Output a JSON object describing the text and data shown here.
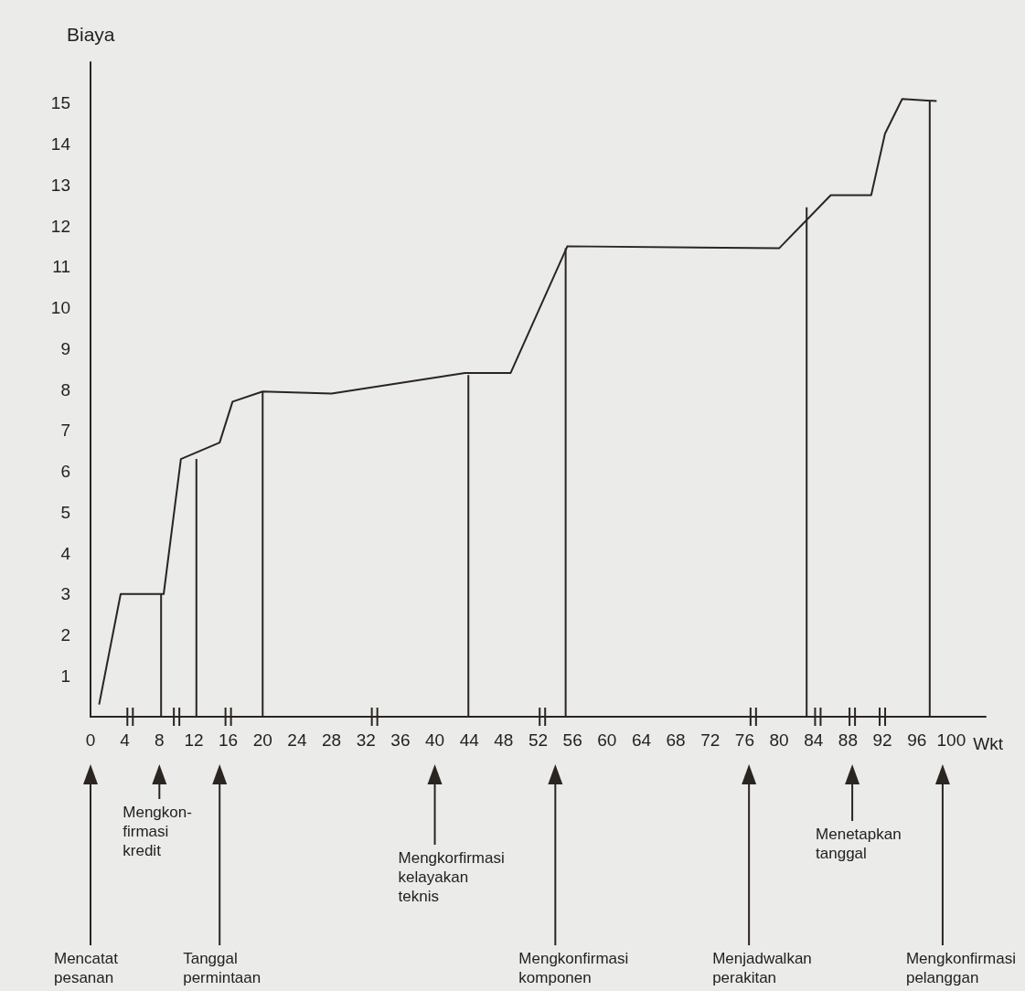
{
  "chart_data": {
    "type": "line",
    "xlabel": "Wkt",
    "ylabel": "Biaya",
    "xlim": [
      0,
      104
    ],
    "xticks": [
      0,
      4,
      8,
      12,
      16,
      20,
      24,
      28,
      32,
      36,
      40,
      44,
      48,
      52,
      56,
      60,
      64,
      68,
      72,
      76,
      80,
      84,
      88,
      92,
      96,
      100
    ],
    "ylim": [
      0,
      16
    ],
    "yticks": [
      1,
      2,
      3,
      4,
      5,
      6,
      7,
      8,
      9,
      10,
      11,
      12,
      13,
      14,
      15
    ],
    "grid": false,
    "marker": "none",
    "line_style": "solid",
    "series": [
      {
        "color": "#2b2522",
        "x": [
          1,
          3.5,
          8.5,
          10.5,
          15,
          16.5,
          20,
          28,
          43.5,
          48.8,
          55.4,
          80,
          86,
          90.7,
          92.3,
          94.3,
          98.3
        ],
        "values": [
          0.3,
          3,
          3,
          6.3,
          6.7,
          7.7,
          7.95,
          7.9,
          8.4,
          8.4,
          11.5,
          11.45,
          12.75,
          12.75,
          14.25,
          15.1,
          15.05
        ]
      },
      {
        "color": "#2b2522",
        "x": [
          8.2,
          8.2
        ],
        "values": [
          0,
          3
        ]
      },
      {
        "color": "#2b2522",
        "x": [
          12.3,
          12.3
        ],
        "values": [
          0,
          6.3
        ]
      },
      {
        "color": "#2b2522",
        "x": [
          20,
          20
        ],
        "values": [
          0,
          7.95
        ]
      },
      {
        "color": "#2b2522",
        "x": [
          43.9,
          43.9
        ],
        "values": [
          0,
          8.35
        ]
      },
      {
        "color": "#2b2522",
        "x": [
          55.2,
          55.2
        ],
        "values": [
          0,
          11.45
        ]
      },
      {
        "color": "#2b2522",
        "x": [
          83.2,
          83.2
        ],
        "values": [
          0,
          12.45
        ]
      },
      {
        "color": "#2b2522",
        "x": [
          97.5,
          97.5
        ],
        "values": [
          0,
          15.05
        ]
      }
    ],
    "annotations": [
      "Mencatat\npesanan",
      "Mengkon-\nfirmasi\nkredit",
      "Tanggal\npermintaan",
      "Mengkorfirmasi\nkelayakan\nteknis",
      "Mengkonfirmasi\nkomponen",
      "Menjadwalkan\nperakitan",
      "Menetapkan\ntanggal",
      "Mengkonfirmasi\npelanggan"
    ]
  }
}
